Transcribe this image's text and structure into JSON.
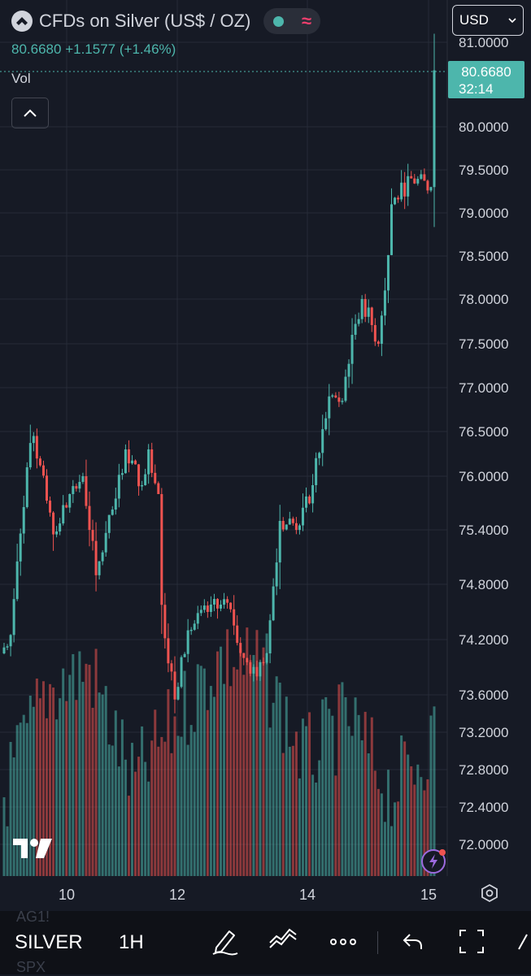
{
  "header": {
    "title": "CFDs on Silver (US$ / OZ)",
    "currency": "USD",
    "last_price": "80.6680",
    "change": "+1.1577",
    "change_pct": "(+1.46%)",
    "volume_label": "Vol"
  },
  "price_tag": {
    "price": "80.6680",
    "countdown": "32:14"
  },
  "underlay": {
    "top": "AG1!",
    "bottom": "SPX"
  },
  "toolbar": {
    "symbol": "SILVER",
    "interval": "1H"
  },
  "colors": {
    "up": "#4db6ac",
    "down": "#ef5350",
    "background": "#161a25",
    "grid": "#262b38"
  },
  "chart_data": {
    "type": "candlestick",
    "title": "CFDs on Silver (US$ / OZ)",
    "x_tick_labels": [
      "10",
      "12",
      "14",
      "15"
    ],
    "y_tick_labels": [
      "81.0000",
      "80.0000",
      "79.5000",
      "79.0000",
      "78.5000",
      "78.0000",
      "77.5000",
      "77.0000",
      "76.5000",
      "76.0000",
      "75.4000",
      "74.8000",
      "74.2000",
      "73.6000",
      "73.2000",
      "72.8000",
      "72.4000",
      "72.0000"
    ],
    "ylim": [
      71.7,
      81.1
    ],
    "last": 80.668,
    "interval": "1H",
    "segments": [
      {
        "n": 3,
        "from": 74.05,
        "to": 74.25
      },
      {
        "n": 5,
        "from": 74.25,
        "to": 76.1
      },
      {
        "n": 2,
        "from": 76.1,
        "to": 76.45
      },
      {
        "n": 6,
        "from": 76.45,
        "to": 75.35
      },
      {
        "n": 5,
        "from": 75.35,
        "to": 75.8
      },
      {
        "n": 4,
        "from": 75.8,
        "to": 76.0
      },
      {
        "n": 4,
        "from": 76.0,
        "to": 74.9
      },
      {
        "n": 6,
        "from": 74.9,
        "to": 75.75
      },
      {
        "n": 3,
        "from": 75.75,
        "to": 76.3
      },
      {
        "n": 5,
        "from": 76.3,
        "to": 75.9
      },
      {
        "n": 2,
        "from": 75.9,
        "to": 76.3
      },
      {
        "n": 3,
        "from": 76.3,
        "to": 75.8
      },
      {
        "n": 5,
        "from": 74.8,
        "to": 73.55
      },
      {
        "n": 4,
        "from": 73.55,
        "to": 74.3
      },
      {
        "n": 6,
        "from": 74.3,
        "to": 74.5
      },
      {
        "n": 6,
        "from": 74.5,
        "to": 74.6
      },
      {
        "n": 5,
        "from": 74.6,
        "to": 74.0
      },
      {
        "n": 4,
        "from": 74.0,
        "to": 73.8
      },
      {
        "n": 3,
        "from": 73.8,
        "to": 74.05
      },
      {
        "n": 4,
        "from": 74.05,
        "to": 75.5
      },
      {
        "n": 6,
        "from": 75.5,
        "to": 75.45
      },
      {
        "n": 4,
        "from": 75.45,
        "to": 75.9
      },
      {
        "n": 5,
        "from": 75.9,
        "to": 76.9
      },
      {
        "n": 4,
        "from": 76.9,
        "to": 76.85
      },
      {
        "n": 3,
        "from": 76.85,
        "to": 77.6
      },
      {
        "n": 3,
        "from": 77.6,
        "to": 78.0
      },
      {
        "n": 5,
        "from": 78.0,
        "to": 77.5
      },
      {
        "n": 2,
        "from": 77.5,
        "to": 78.1
      },
      {
        "n": 2,
        "from": 78.1,
        "to": 79.1
      },
      {
        "n": 6,
        "from": 79.1,
        "to": 79.4
      },
      {
        "n": 6,
        "from": 79.4,
        "to": 79.3
      },
      {
        "n": 1,
        "from": 79.3,
        "to": 80.668
      }
    ],
    "volume_top": [
      978,
      848,
      822,
      965,
      887,
      808,
      822,
      935,
      885,
      975,
      905
    ]
  }
}
